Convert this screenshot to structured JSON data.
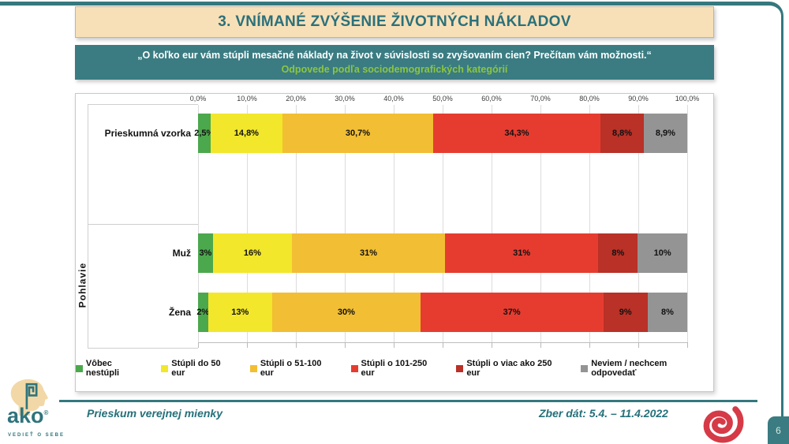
{
  "title": {
    "text": "3. VNÍMANÉ ZVÝŠENIE ŽIVOTNÝCH NÁKLADOV"
  },
  "subtitle": {
    "line1": "„O koľko eur vám stúpli mesačné náklady na život v súvislosti so zvyšovaním cien? Prečítam vám možnosti.“",
    "line2": "Odpovede podľa sociodemografických kategórií"
  },
  "chart_data": {
    "type": "bar",
    "stacked": true,
    "orientation": "horizontal",
    "axis_range": [
      0,
      100
    ],
    "grid": true,
    "legend_position": "bottom",
    "x_ticks": [
      "0,0%",
      "10,0%",
      "20,0%",
      "30,0%",
      "40,0%",
      "50,0%",
      "60,0%",
      "70,0%",
      "80,0%",
      "90,0%",
      "100,0%"
    ],
    "categories": [
      "Prieskumná vzorka",
      "Muž",
      "Žena"
    ],
    "group_axis_label": "Pohlavie",
    "series": [
      {
        "name": "Vôbec nestúpli",
        "color": "#4CA84D",
        "values": [
          2.5,
          3,
          2
        ],
        "labels": [
          "2,5%",
          "3%",
          "2%"
        ]
      },
      {
        "name": "Stúpli do 50 eur",
        "color": "#F2E72B",
        "values": [
          14.8,
          16,
          13
        ],
        "labels": [
          "14,8%",
          "16%",
          "13%"
        ]
      },
      {
        "name": "Stúpli o 51-100 eur",
        "color": "#F2BE33",
        "values": [
          30.7,
          31,
          30
        ],
        "labels": [
          "30,7%",
          "31%",
          "30%"
        ]
      },
      {
        "name": "Stúpli o 101-250 eur",
        "color": "#E63C30",
        "values": [
          34.3,
          31,
          37
        ],
        "labels": [
          "34,3%",
          "31%",
          "37%"
        ]
      },
      {
        "name": "Stúpli o viac ako 250 eur",
        "color": "#B93127",
        "values": [
          8.8,
          8,
          9
        ],
        "labels": [
          "8,8%",
          "8%",
          "9%"
        ]
      },
      {
        "name": "Neviem / nechcem odpovedať",
        "color": "#949494",
        "values": [
          8.9,
          10,
          8
        ],
        "labels": [
          "8,9%",
          "10%",
          "8%"
        ]
      }
    ]
  },
  "footer": {
    "left_text": "Prieskum verejnej mienky",
    "right_text": "Zber dát: 5.4. – 11.4.2022",
    "page_number": "6",
    "logo_text": "ako",
    "logo_sub": "VEDIEŤ O SEBE"
  },
  "colors": {
    "teal": "#35787E",
    "cream": "#F7E0B8",
    "subtitle_green": "#8CC63F",
    "swirl_red": "#D63A47"
  }
}
